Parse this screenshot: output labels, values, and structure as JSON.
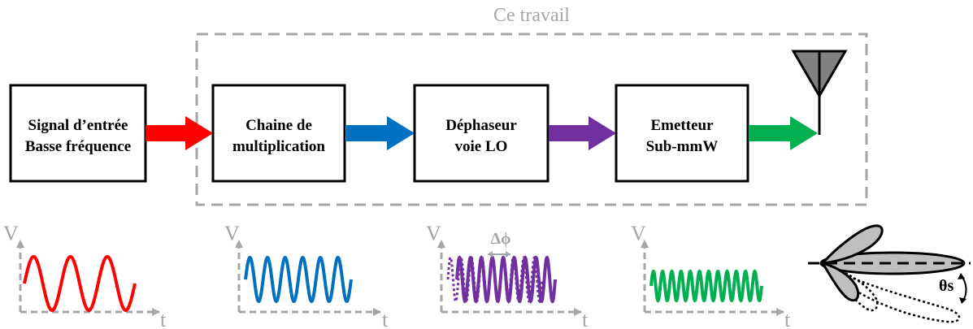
{
  "frame": {
    "label": "Ce travail"
  },
  "blocks": [
    {
      "lines": [
        "Signal d’entrée",
        "Basse fréquence"
      ]
    },
    {
      "lines": [
        "Chaine de",
        "multiplication"
      ]
    },
    {
      "lines": [
        "Déphaseur",
        "voie LO"
      ]
    },
    {
      "lines": [
        "Emetteur",
        "Sub-mmW"
      ]
    }
  ],
  "arrows": [
    {
      "color": "#ff0000"
    },
    {
      "color": "#0070c0"
    },
    {
      "color": "#7030a0"
    },
    {
      "color": "#00b050"
    }
  ],
  "plots": [
    {
      "y_axis": "V",
      "x_axis": "t",
      "color": "#ff0000",
      "cycles": 3
    },
    {
      "y_axis": "V",
      "x_axis": "t",
      "color": "#0070c0",
      "cycles": 6
    },
    {
      "y_axis": "V",
      "x_axis": "t",
      "color": "#7030a0",
      "cycles": 9,
      "phase_label": "Δϕ"
    },
    {
      "y_axis": "V",
      "x_axis": "t",
      "color": "#00b050",
      "cycles": 12
    }
  ],
  "radiation": {
    "angle_label": "θs"
  },
  "colors": {
    "frame": "#a6a6a6",
    "antenna_fill": "#808080",
    "lobe_fill": "#bfbfbf"
  }
}
